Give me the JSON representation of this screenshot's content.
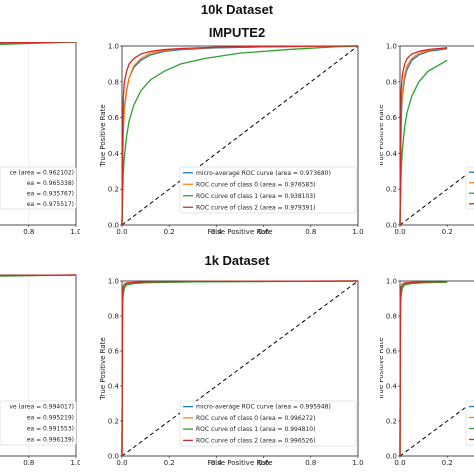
{
  "titles": {
    "top": "10k Dataset",
    "top_sub": "IMPUTE2",
    "bottom": "1k Dataset"
  },
  "colors": {
    "micro": "#1f77b4",
    "class0": "#ff7f0e",
    "class1": "#2ca02c",
    "class2": "#d62728",
    "diag": "#000000"
  },
  "chart_data": [
    {
      "id": "top-left",
      "type": "line",
      "partial": "left-cropped",
      "xlim": [
        0,
        1
      ],
      "ylim": [
        0,
        1
      ],
      "xticks": [
        "0.8",
        "1.0"
      ],
      "yticks": [],
      "xlabel": "",
      "ylabel": "",
      "legend": [
        "ce (area = 0.962102)",
        "ea = 0.965338)",
        "ea = 0.935767)",
        "ea = 0.975517)"
      ],
      "series": [
        {
          "key": "micro",
          "auc": 0.962102,
          "x": [
            0.62,
            1.0
          ],
          "y": [
            0.99,
            1.0
          ]
        },
        {
          "key": "class0",
          "auc": 0.965338,
          "x": [
            0.62,
            1.0
          ],
          "y": [
            0.99,
            1.0
          ]
        },
        {
          "key": "class1",
          "auc": 0.935767,
          "x": [
            0.62,
            1.0
          ],
          "y": [
            0.985,
            1.0
          ]
        },
        {
          "key": "class2",
          "auc": 0.975517,
          "x": [
            0.62,
            1.0
          ],
          "y": [
            0.995,
            1.0
          ]
        }
      ]
    },
    {
      "id": "top-center",
      "type": "line",
      "xlim": [
        0,
        1
      ],
      "ylim": [
        0,
        1
      ],
      "xticks": [
        "0.0",
        "0.2",
        "0.4",
        "0.6",
        "0.8",
        "1.0"
      ],
      "yticks": [
        "0.0",
        "0.2",
        "0.4",
        "0.6",
        "0.8",
        "1.0"
      ],
      "xlabel": "False Positive Rate",
      "ylabel": "True Positive Rate",
      "legend": [
        "micro-average ROC curve (area = 0.973680)",
        "ROC curve of class 0 (area = 0.976583)",
        "ROC curve of class 1 (area = 0.938103)",
        "ROC curve of class 2 (area = 0.979391)"
      ],
      "series": [
        {
          "key": "micro",
          "auc": 0.97368,
          "x": [
            0,
            0.005,
            0.01,
            0.02,
            0.03,
            0.05,
            0.08,
            0.12,
            0.18,
            0.25,
            0.4,
            0.6,
            0.8,
            1.0
          ],
          "y": [
            0,
            0.55,
            0.66,
            0.76,
            0.82,
            0.88,
            0.92,
            0.95,
            0.97,
            0.98,
            0.99,
            0.995,
            0.998,
            1.0
          ]
        },
        {
          "key": "class0",
          "auc": 0.976583,
          "x": [
            0,
            0.005,
            0.01,
            0.02,
            0.03,
            0.05,
            0.08,
            0.12,
            0.18,
            0.25,
            0.4,
            0.6,
            0.8,
            1.0
          ],
          "y": [
            0,
            0.52,
            0.64,
            0.75,
            0.82,
            0.89,
            0.93,
            0.96,
            0.975,
            0.985,
            0.992,
            0.996,
            0.998,
            1.0
          ]
        },
        {
          "key": "class1",
          "auc": 0.938103,
          "x": [
            0,
            0.005,
            0.01,
            0.02,
            0.03,
            0.05,
            0.08,
            0.12,
            0.18,
            0.25,
            0.35,
            0.5,
            0.7,
            0.9,
            1.0
          ],
          "y": [
            0,
            0.28,
            0.38,
            0.5,
            0.58,
            0.67,
            0.75,
            0.81,
            0.86,
            0.9,
            0.93,
            0.96,
            0.98,
            0.995,
            1.0
          ]
        },
        {
          "key": "class2",
          "auc": 0.979391,
          "x": [
            0,
            0.005,
            0.01,
            0.02,
            0.03,
            0.05,
            0.08,
            0.12,
            0.18,
            0.25,
            0.4,
            0.6,
            0.8,
            1.0
          ],
          "y": [
            0,
            0.7,
            0.8,
            0.86,
            0.9,
            0.93,
            0.955,
            0.97,
            0.98,
            0.986,
            0.993,
            0.997,
            0.999,
            1.0
          ]
        }
      ]
    },
    {
      "id": "top-right",
      "type": "line",
      "partial": "right-cropped",
      "xlim": [
        0,
        1
      ],
      "ylim": [
        0,
        1
      ],
      "xticks": [
        "0.0",
        "0.2"
      ],
      "yticks": [
        "0.0",
        "0.2",
        "0.4",
        "0.6",
        "0.8",
        "1.0"
      ],
      "xlabel": "",
      "ylabel": "True Positive Rate",
      "legend": [],
      "series": [
        {
          "key": "micro",
          "auc": null,
          "x": [
            0,
            0.005,
            0.01,
            0.02,
            0.03,
            0.05,
            0.08,
            0.12,
            0.2
          ],
          "y": [
            0,
            0.6,
            0.72,
            0.82,
            0.87,
            0.92,
            0.95,
            0.97,
            0.985
          ]
        },
        {
          "key": "class0",
          "auc": null,
          "x": [
            0,
            0.005,
            0.01,
            0.02,
            0.03,
            0.05,
            0.08,
            0.12,
            0.2
          ],
          "y": [
            0,
            0.62,
            0.74,
            0.84,
            0.89,
            0.93,
            0.96,
            0.975,
            0.99
          ]
        },
        {
          "key": "class1",
          "auc": null,
          "x": [
            0,
            0.005,
            0.01,
            0.02,
            0.03,
            0.05,
            0.08,
            0.12,
            0.2
          ],
          "y": [
            0,
            0.3,
            0.42,
            0.55,
            0.63,
            0.72,
            0.8,
            0.86,
            0.92
          ]
        },
        {
          "key": "class2",
          "auc": null,
          "x": [
            0,
            0.005,
            0.01,
            0.02,
            0.03,
            0.05,
            0.08,
            0.12,
            0.2
          ],
          "y": [
            0,
            0.75,
            0.84,
            0.9,
            0.93,
            0.955,
            0.97,
            0.98,
            0.99
          ]
        }
      ]
    },
    {
      "id": "bottom-left",
      "type": "line",
      "partial": "left-cropped",
      "xlim": [
        0,
        1
      ],
      "ylim": [
        0,
        1
      ],
      "xticks": [
        "0.8",
        "1.0"
      ],
      "yticks": [],
      "xlabel": "",
      "ylabel": "",
      "legend": [
        "ve (area = 0.994017)",
        "ea = 0.995219)",
        "ea = 0.991553)",
        "ea = 0.996139)"
      ],
      "series": [
        {
          "key": "micro",
          "auc": 0.994017,
          "x": [
            0.62,
            1.0
          ],
          "y": [
            0.995,
            1.0
          ]
        },
        {
          "key": "class0",
          "auc": 0.995219,
          "x": [
            0.62,
            1.0
          ],
          "y": [
            0.995,
            1.0
          ]
        },
        {
          "key": "class1",
          "auc": 0.991553,
          "x": [
            0.62,
            1.0
          ],
          "y": [
            0.993,
            1.0
          ]
        },
        {
          "key": "class2",
          "auc": 0.996139,
          "x": [
            0.62,
            1.0
          ],
          "y": [
            0.997,
            1.0
          ]
        }
      ]
    },
    {
      "id": "bottom-center",
      "type": "line",
      "xlim": [
        0,
        1
      ],
      "ylim": [
        0,
        1
      ],
      "xticks": [
        "0.0",
        "0.2",
        "0.4",
        "0.6",
        "0.8",
        "1.0"
      ],
      "yticks": [
        "0.0",
        "0.2",
        "0.4",
        "0.6",
        "0.8",
        "1.0"
      ],
      "xlabel": "False Positive Rate",
      "ylabel": "True Positive Rate",
      "legend": [
        "micro-average ROC curve (area = 0.995948)",
        "ROC curve of class 0 (area = 0.996272)",
        "ROC curve of class 1 (area = 0.994810)",
        "ROC curve of class 2 (area = 0.996526)"
      ],
      "series": [
        {
          "key": "micro",
          "auc": 0.995948,
          "x": [
            0,
            0.002,
            0.005,
            0.01,
            0.02,
            0.05,
            0.1,
            0.3,
            1.0
          ],
          "y": [
            0,
            0.9,
            0.95,
            0.975,
            0.985,
            0.99,
            0.993,
            0.997,
            1.0
          ]
        },
        {
          "key": "class0",
          "auc": 0.996272,
          "x": [
            0,
            0.002,
            0.005,
            0.01,
            0.02,
            0.05,
            0.1,
            0.3,
            1.0
          ],
          "y": [
            0,
            0.91,
            0.955,
            0.978,
            0.987,
            0.991,
            0.994,
            0.997,
            1.0
          ]
        },
        {
          "key": "class1",
          "auc": 0.99481,
          "x": [
            0,
            0.002,
            0.005,
            0.01,
            0.02,
            0.05,
            0.1,
            0.3,
            1.0
          ],
          "y": [
            0,
            0.85,
            0.92,
            0.96,
            0.978,
            0.986,
            0.99,
            0.995,
            1.0
          ]
        },
        {
          "key": "class2",
          "auc": 0.996526,
          "x": [
            0,
            0.002,
            0.005,
            0.01,
            0.02,
            0.05,
            0.1,
            0.3,
            1.0
          ],
          "y": [
            0,
            0.93,
            0.965,
            0.982,
            0.989,
            0.992,
            0.995,
            0.998,
            1.0
          ]
        }
      ]
    },
    {
      "id": "bottom-right",
      "type": "line",
      "partial": "right-cropped",
      "xlim": [
        0,
        1
      ],
      "ylim": [
        0,
        1
      ],
      "xticks": [
        "0.0",
        "0.2"
      ],
      "yticks": [
        "0.0",
        "0.2",
        "0.4",
        "0.6",
        "0.8",
        "1.0"
      ],
      "xlabel": "",
      "ylabel": "True Positive Rate",
      "legend": [],
      "series": [
        {
          "key": "micro",
          "auc": null,
          "x": [
            0,
            0.002,
            0.005,
            0.01,
            0.02,
            0.05,
            0.1,
            0.2
          ],
          "y": [
            0,
            0.9,
            0.95,
            0.975,
            0.985,
            0.99,
            0.993,
            0.995
          ]
        },
        {
          "key": "class0",
          "auc": null,
          "x": [
            0,
            0.002,
            0.005,
            0.01,
            0.02,
            0.05,
            0.1,
            0.2
          ],
          "y": [
            0,
            0.91,
            0.955,
            0.978,
            0.987,
            0.991,
            0.994,
            0.996
          ]
        },
        {
          "key": "class1",
          "auc": null,
          "x": [
            0,
            0.002,
            0.005,
            0.01,
            0.02,
            0.05,
            0.1,
            0.2
          ],
          "y": [
            0,
            0.86,
            0.92,
            0.96,
            0.978,
            0.986,
            0.99,
            0.993
          ]
        },
        {
          "key": "class2",
          "auc": null,
          "x": [
            0,
            0.002,
            0.005,
            0.01,
            0.02,
            0.05,
            0.1,
            0.2
          ],
          "y": [
            0,
            0.93,
            0.965,
            0.982,
            0.989,
            0.992,
            0.995,
            0.997
          ]
        }
      ]
    }
  ]
}
